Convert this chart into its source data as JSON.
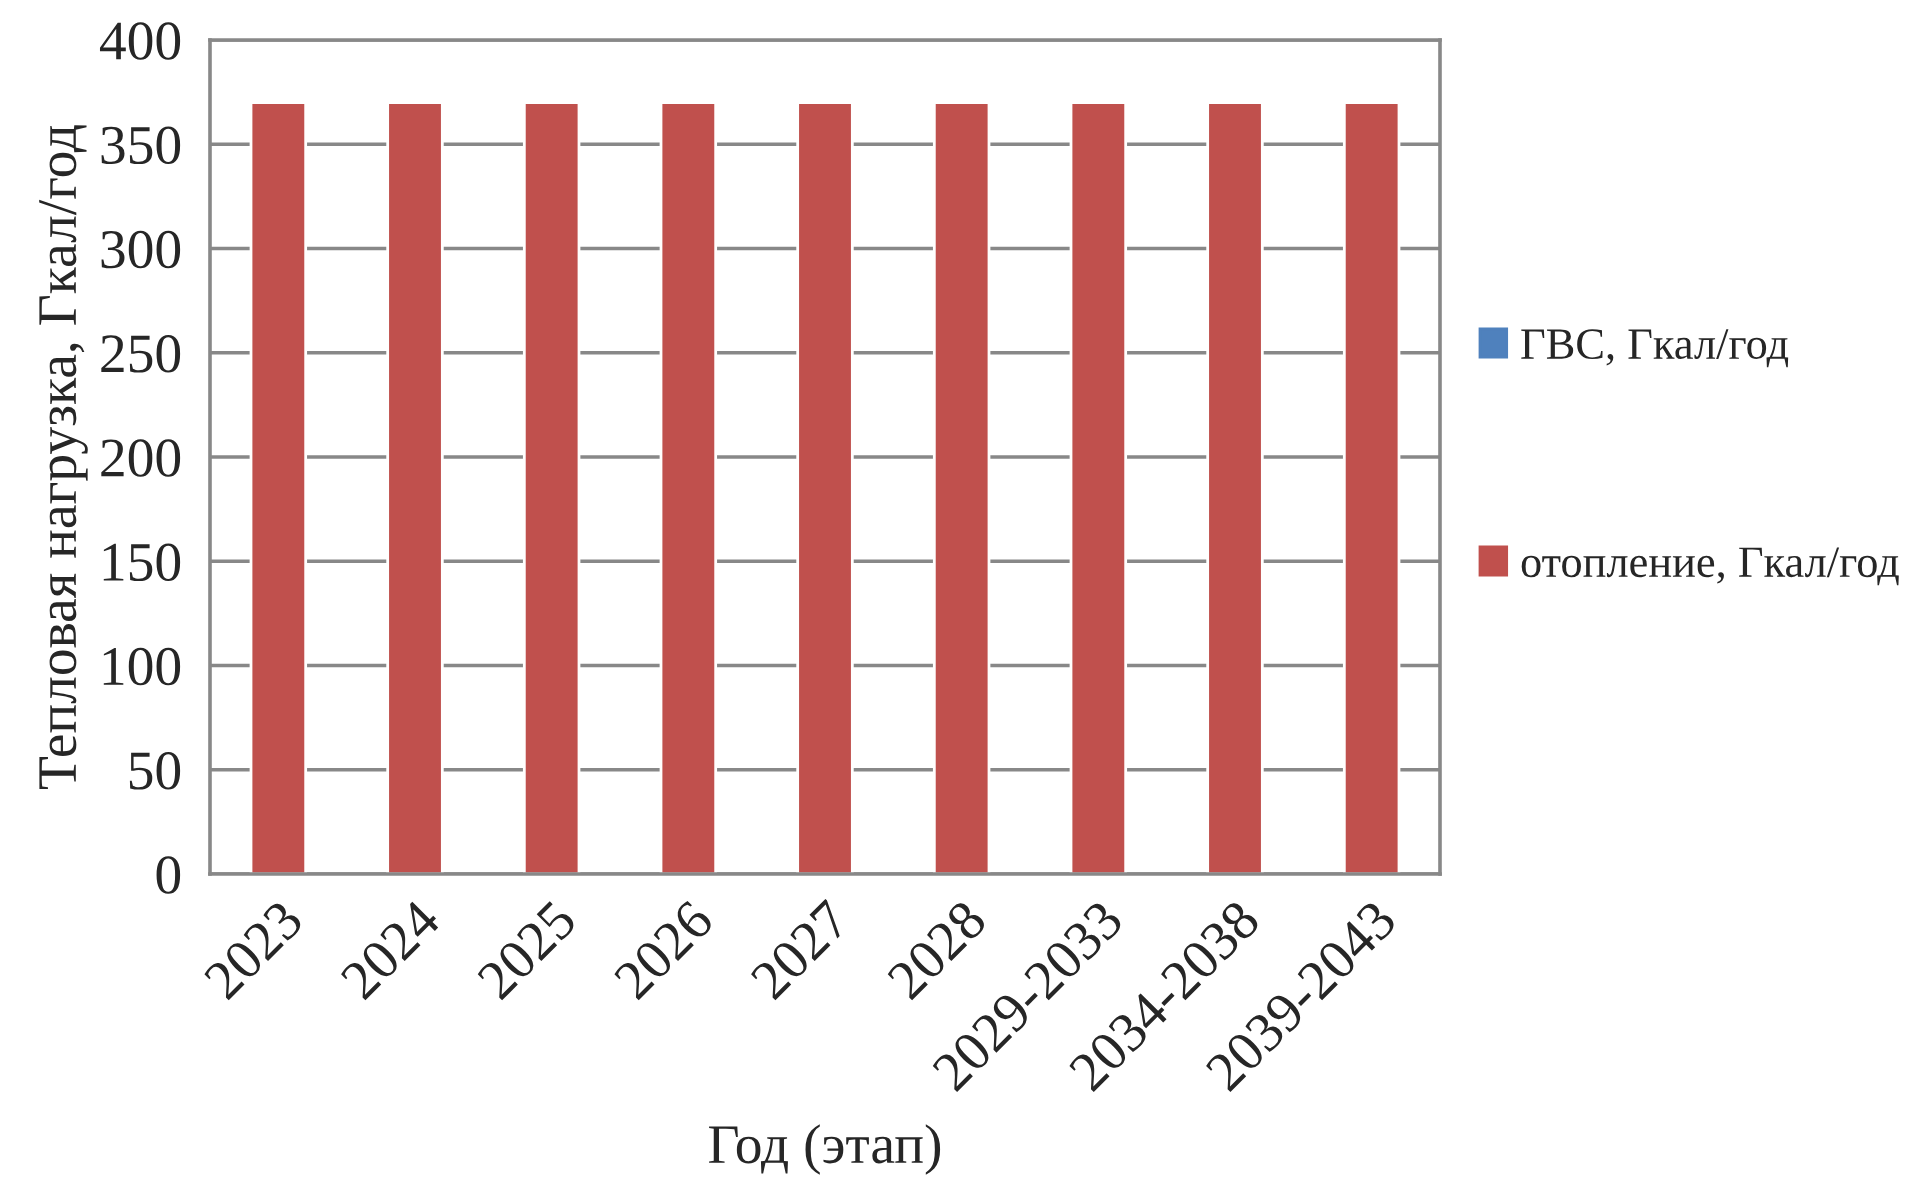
{
  "chart_data": {
    "type": "bar",
    "stacked": true,
    "xlabel": "Год (этап)",
    "ylabel": "Тепловая нагрузка, Гкал/год",
    "categories": [
      "2023",
      "2024",
      "2025",
      "2026",
      "2027",
      "2028",
      "2029-2033",
      "2034-2038",
      "2039-2043"
    ],
    "series": [
      {
        "name": "ГВС, Гкал/год",
        "color": "#4f81bd",
        "values": [
          0,
          0,
          0,
          0,
          0,
          0,
          0,
          0,
          0
        ]
      },
      {
        "name": "отопление, Гкал/год",
        "color": "#c0504d",
        "values": [
          370,
          370,
          370,
          370,
          370,
          370,
          370,
          370,
          370
        ]
      }
    ],
    "ylim": [
      0,
      400
    ],
    "yticks": [
      0,
      50,
      100,
      150,
      200,
      250,
      300,
      350,
      400
    ],
    "grid": "y",
    "legend": "right"
  }
}
